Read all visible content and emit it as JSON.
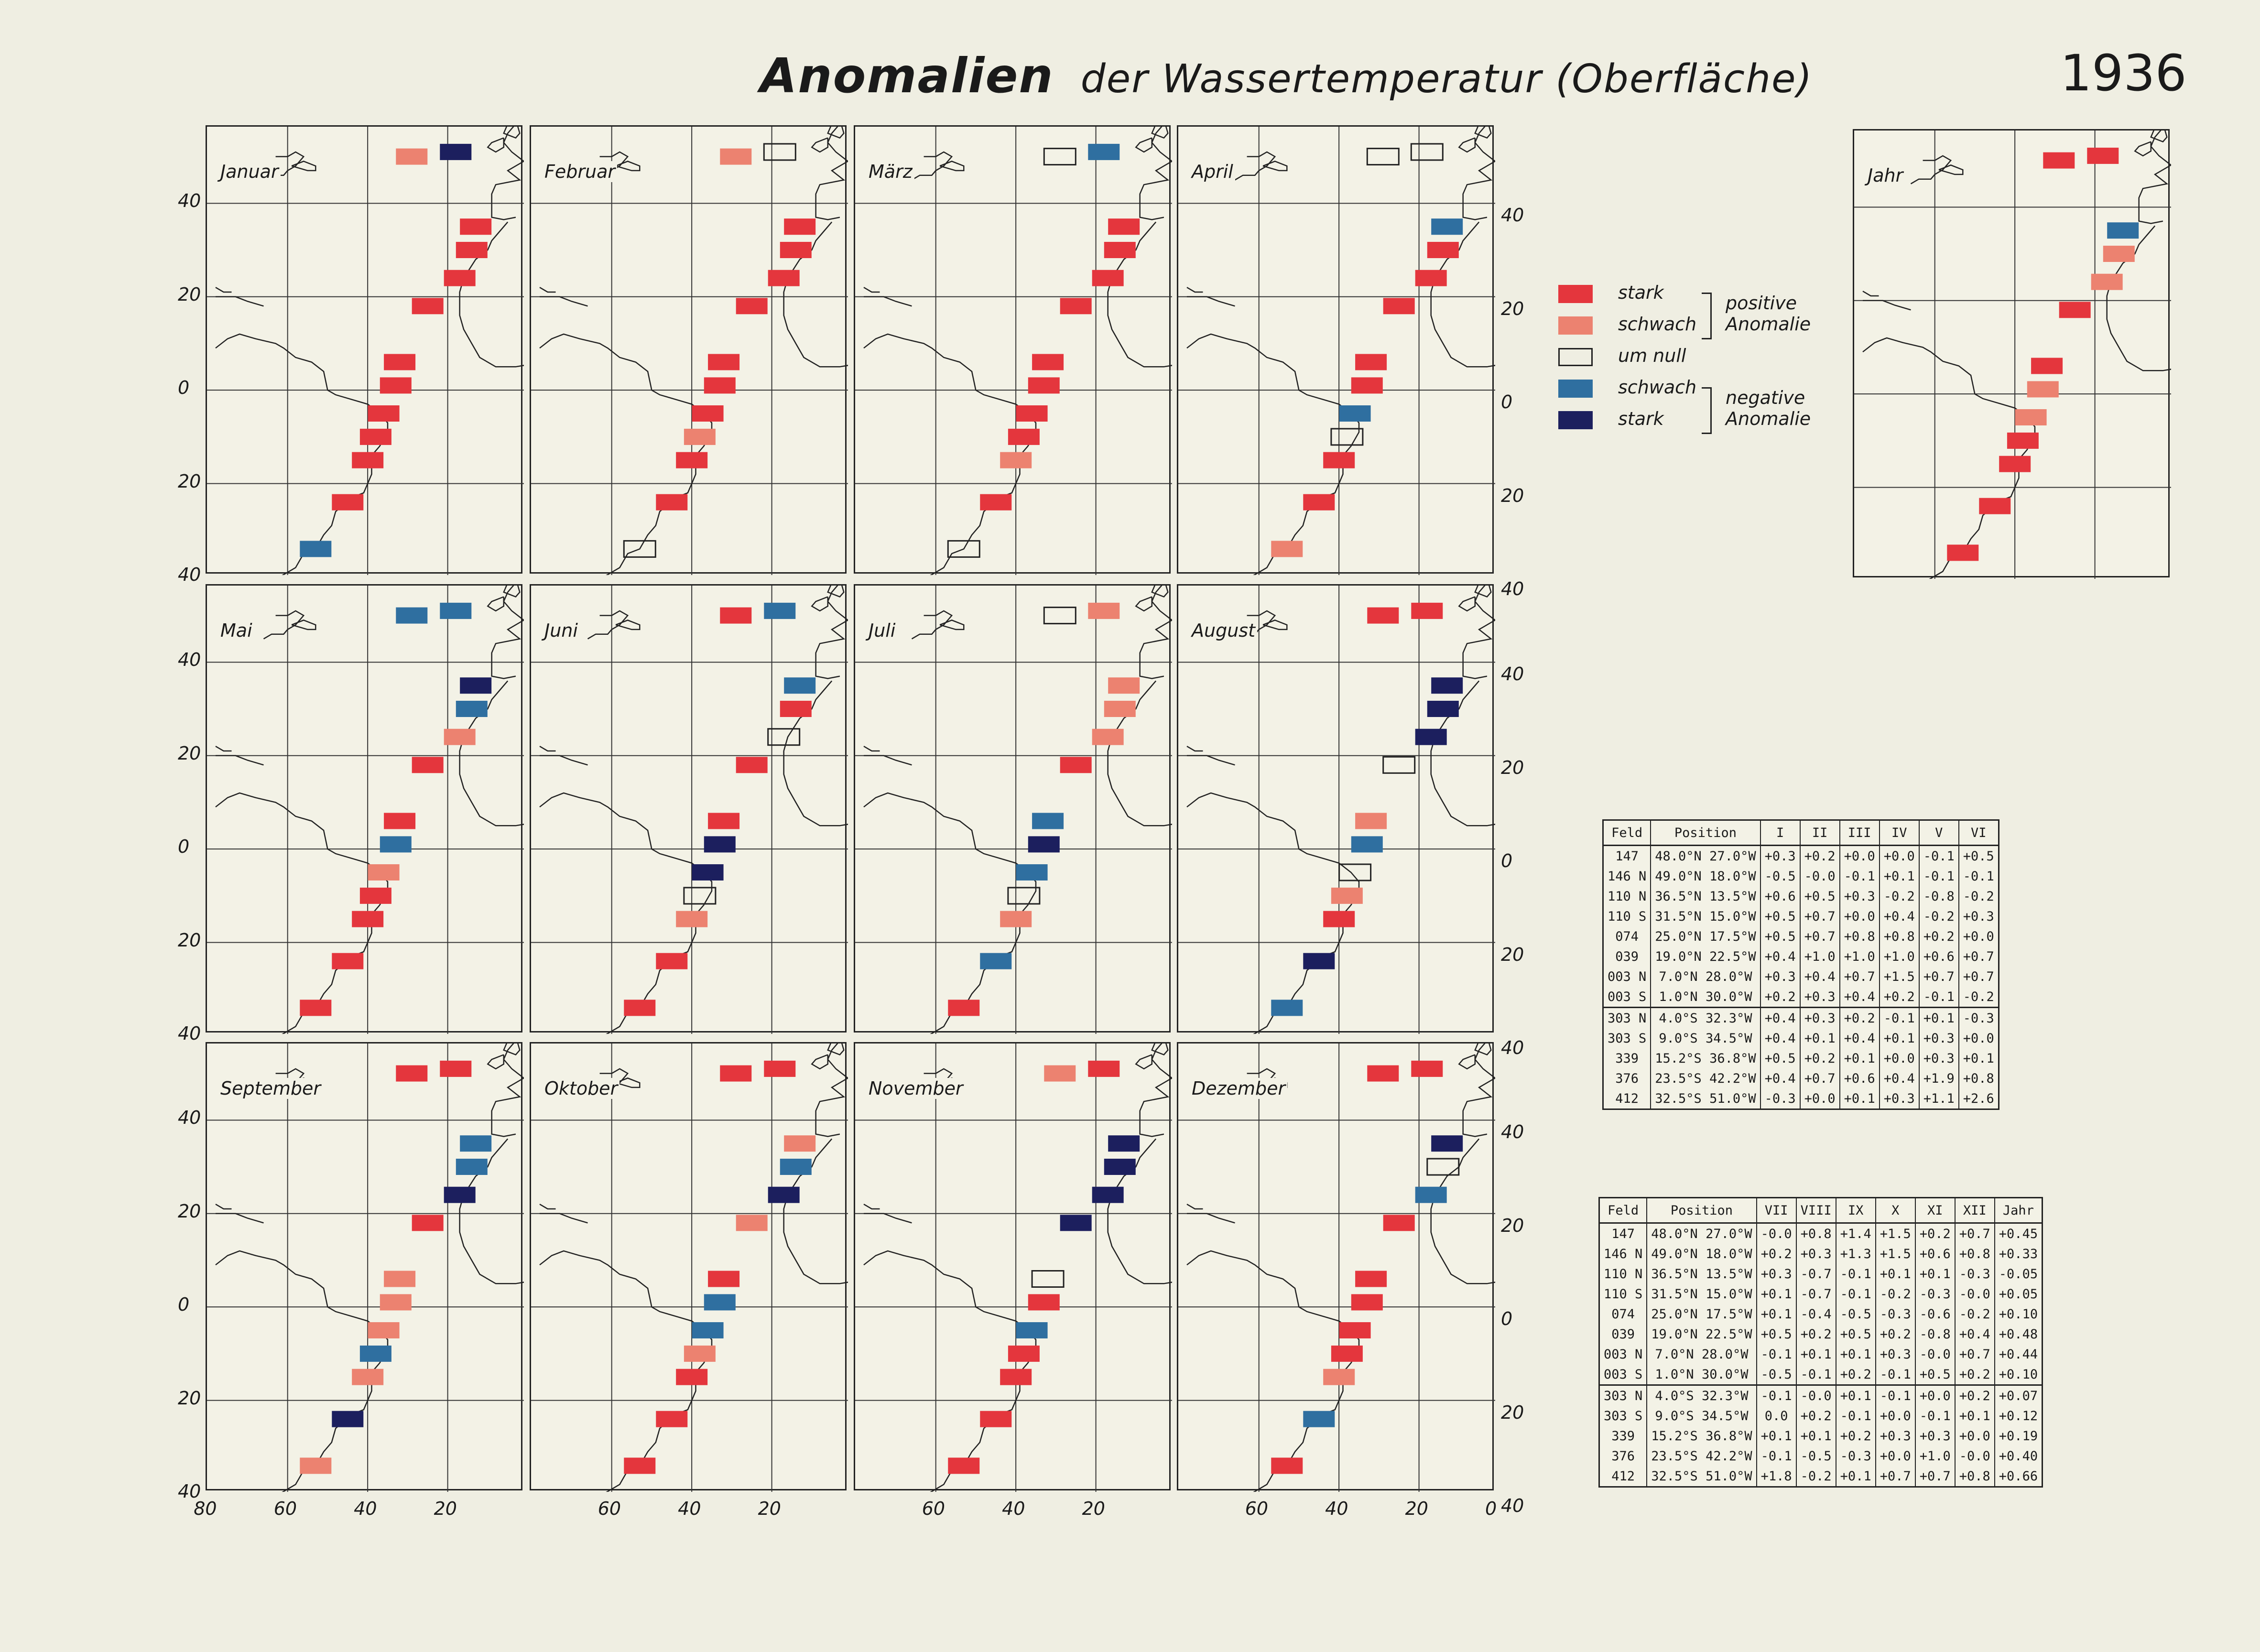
{
  "title": {
    "main": "Anomalien",
    "rest": "der Wassertemperatur (Oberfläche)",
    "year": "1936"
  },
  "colors": {
    "stark_pos": "#e4363d",
    "schwach_pos": "#ec8270",
    "null": "none",
    "schwach_neg": "#2f6fa0",
    "stark_neg": "#1c1f5e",
    "land": "#222222"
  },
  "axis": {
    "y_left": [
      "40",
      "20",
      "0",
      "20",
      "40"
    ],
    "y_right": [
      "40",
      "20",
      "0",
      "20",
      "40"
    ],
    "x": [
      "80",
      "60",
      "40",
      "20",
      "0"
    ]
  },
  "legend": {
    "items": [
      {
        "cls": "sp",
        "label": "stark"
      },
      {
        "cls": "wp",
        "label": "schwach"
      },
      {
        "cls": "n",
        "label": "um null"
      },
      {
        "cls": "wn",
        "label": "schwach"
      },
      {
        "cls": "sn",
        "label": "stark"
      }
    ],
    "pos_group": "positive\nAnomalie",
    "neg_group": "negative\nAnomalie"
  },
  "fields": [
    {
      "id": "147",
      "lat": 48.0,
      "lon": -27.0,
      "bar_lat": 50,
      "bar_lon": -29
    },
    {
      "id": "146 N",
      "lat": 49.0,
      "lon": -18.0,
      "bar_lat": 51,
      "bar_lon": -18
    },
    {
      "id": "110 N",
      "lat": 36.5,
      "lon": -13.5,
      "bar_lat": 35,
      "bar_lon": -13
    },
    {
      "id": "110 S",
      "lat": 31.5,
      "lon": -15.0,
      "bar_lat": 30,
      "bar_lon": -14
    },
    {
      "id": "074",
      "lat": 25.0,
      "lon": -17.5,
      "bar_lat": 24,
      "bar_lon": -17
    },
    {
      "id": "039",
      "lat": 19.0,
      "lon": -22.5,
      "bar_lat": 18,
      "bar_lon": -25
    },
    {
      "id": "003 N",
      "lat": 7.0,
      "lon": -28.0,
      "bar_lat": 6,
      "bar_lon": -32
    },
    {
      "id": "003 S",
      "lat": 1.0,
      "lon": -30.0,
      "bar_lat": 1,
      "bar_lon": -33
    },
    {
      "id": "303 N",
      "lat": -4.0,
      "lon": -32.3,
      "bar_lat": -5,
      "bar_lon": -36
    },
    {
      "id": "303 S",
      "lat": -9.0,
      "lon": -34.5,
      "bar_lat": -10,
      "bar_lon": -38
    },
    {
      "id": "339",
      "lat": -15.2,
      "lon": -36.8,
      "bar_lat": -15,
      "bar_lon": -40
    },
    {
      "id": "376",
      "lat": -23.5,
      "lon": -42.2,
      "bar_lat": -24,
      "bar_lon": -45
    },
    {
      "id": "412",
      "lat": -32.5,
      "lon": -51.0,
      "bar_lat": -34,
      "bar_lon": -53
    }
  ],
  "months": [
    {
      "name": "Januar",
      "cls": [
        "wp",
        "sn",
        "sp",
        "sp",
        "sp",
        "sp",
        "sp",
        "sp",
        "sp",
        "sp",
        "sp",
        "sp",
        "wn"
      ]
    },
    {
      "name": "Februar",
      "cls": [
        "wp",
        "n",
        "sp",
        "sp",
        "sp",
        "sp",
        "sp",
        "sp",
        "sp",
        "wp",
        "sp",
        "sp",
        "n"
      ]
    },
    {
      "name": "März",
      "cls": [
        "n",
        "wn",
        "sp",
        "sp",
        "sp",
        "sp",
        "sp",
        "sp",
        "sp",
        "sp",
        "wp",
        "sp",
        "n"
      ]
    },
    {
      "name": "April",
      "cls": [
        "n",
        "n",
        "wn",
        "sp",
        "sp",
        "sp",
        "sp",
        "sp",
        "wn",
        "n",
        "sp",
        "sp",
        "wp"
      ]
    },
    {
      "name": "Mai",
      "cls": [
        "wn",
        "wn",
        "sn",
        "wn",
        "wp",
        "sp",
        "sp",
        "wn",
        "wp",
        "sp",
        "sp",
        "sp",
        "sp"
      ]
    },
    {
      "name": "Juni",
      "cls": [
        "sp",
        "wn",
        "wn",
        "sp",
        "n",
        "sp",
        "sp",
        "sn",
        "sn",
        "n",
        "wp",
        "sp",
        "sp"
      ]
    },
    {
      "name": "Juli",
      "cls": [
        "n",
        "wp",
        "wp",
        "wp",
        "wp",
        "sp",
        "wn",
        "sn",
        "wn",
        "n",
        "wp",
        "wn",
        "sp"
      ]
    },
    {
      "name": "August",
      "cls": [
        "sp",
        "sp",
        "sn",
        "sn",
        "sn",
        "n",
        "wp",
        "wn",
        "n",
        "wp",
        "sp",
        "sn",
        "wn"
      ]
    },
    {
      "name": "September",
      "cls": [
        "sp",
        "sp",
        "wn",
        "wn",
        "sn",
        "sp",
        "wp",
        "wp",
        "wp",
        "wn",
        "wp",
        "sn",
        "wp"
      ]
    },
    {
      "name": "Oktober",
      "cls": [
        "sp",
        "sp",
        "wp",
        "wn",
        "sn",
        "wp",
        "sp",
        "wn",
        "wn",
        "wp",
        "sp",
        "sp",
        "sp"
      ]
    },
    {
      "name": "November",
      "cls": [
        "wp",
        "sp",
        "sn",
        "sn",
        "sn",
        "sn",
        "n",
        "sp",
        "wn",
        "sp",
        "sp",
        "sp",
        "sp"
      ]
    },
    {
      "name": "Dezember",
      "cls": [
        "sp",
        "sp",
        "sn",
        "n",
        "wn",
        "sp",
        "sp",
        "sp",
        "sp",
        "sp",
        "wp",
        "wn",
        "sp"
      ]
    },
    {
      "name": "Jahr",
      "cls": [
        "sp",
        "sp",
        "wn",
        "wp",
        "wp",
        "sp",
        "sp",
        "wp",
        "wp",
        "sp",
        "sp",
        "sp",
        "sp"
      ]
    }
  ],
  "table1": {
    "headers": [
      "Feld",
      "Position",
      "I",
      "II",
      "III",
      "IV",
      "V",
      "VI"
    ],
    "rows": [
      [
        "147",
        "48.0°N 27.0°W",
        "+0.3",
        "+0.2",
        "+0.0",
        "+0.0",
        "-0.1",
        "+0.5"
      ],
      [
        "146 N",
        "49.0°N 18.0°W",
        "-0.5",
        "-0.0",
        "-0.1",
        "+0.1",
        "-0.1",
        "-0.1"
      ],
      [
        "110 N",
        "36.5°N 13.5°W",
        "+0.6",
        "+0.5",
        "+0.3",
        "-0.2",
        "-0.8",
        "-0.2"
      ],
      [
        "110 S",
        "31.5°N 15.0°W",
        "+0.5",
        "+0.7",
        "+0.0",
        "+0.4",
        "-0.2",
        "+0.3"
      ],
      [
        "074",
        "25.0°N 17.5°W",
        "+0.5",
        "+0.7",
        "+0.8",
        "+0.8",
        "+0.2",
        "+0.0"
      ],
      [
        "039",
        "19.0°N 22.5°W",
        "+0.4",
        "+1.0",
        "+1.0",
        "+1.0",
        "+0.6",
        "+0.7"
      ],
      [
        "003 N",
        "7.0°N 28.0°W",
        "+0.3",
        "+0.4",
        "+0.7",
        "+1.5",
        "+0.7",
        "+0.7"
      ],
      [
        "003 S",
        "1.0°N 30.0°W",
        "+0.2",
        "+0.3",
        "+0.4",
        "+0.2",
        "-0.1",
        "-0.2"
      ],
      [
        "303 N",
        "4.0°S 32.3°W",
        "+0.4",
        "+0.3",
        "+0.2",
        "-0.1",
        "+0.1",
        "-0.3"
      ],
      [
        "303 S",
        "9.0°S 34.5°W",
        "+0.4",
        "+0.1",
        "+0.4",
        "+0.1",
        "+0.3",
        "+0.0"
      ],
      [
        "339",
        "15.2°S 36.8°W",
        "+0.5",
        "+0.2",
        "+0.1",
        "+0.0",
        "+0.3",
        "+0.1"
      ],
      [
        "376",
        "23.5°S 42.2°W",
        "+0.4",
        "+0.7",
        "+0.6",
        "+0.4",
        "+1.9",
        "+0.8"
      ],
      [
        "412",
        "32.5°S 51.0°W",
        "-0.3",
        "+0.0",
        "+0.1",
        "+0.3",
        "+1.1",
        "+2.6"
      ]
    ]
  },
  "table2": {
    "headers": [
      "Feld",
      "Position",
      "VII",
      "VIII",
      "IX",
      "X",
      "XI",
      "XII",
      "Jahr"
    ],
    "rows": [
      [
        "147",
        "48.0°N 27.0°W",
        "-0.0",
        "+0.8",
        "+1.4",
        "+1.5",
        "+0.2",
        "+0.7",
        "+0.45"
      ],
      [
        "146 N",
        "49.0°N 18.0°W",
        "+0.2",
        "+0.3",
        "+1.3",
        "+1.5",
        "+0.6",
        "+0.8",
        "+0.33"
      ],
      [
        "110 N",
        "36.5°N 13.5°W",
        "+0.3",
        "-0.7",
        "-0.1",
        "+0.1",
        "+0.1",
        "-0.3",
        "-0.05"
      ],
      [
        "110 S",
        "31.5°N 15.0°W",
        "+0.1",
        "-0.7",
        "-0.1",
        "-0.2",
        "-0.3",
        "-0.0",
        "+0.05"
      ],
      [
        "074",
        "25.0°N 17.5°W",
        "+0.1",
        "-0.4",
        "-0.5",
        "-0.3",
        "-0.6",
        "-0.2",
        "+0.10"
      ],
      [
        "039",
        "19.0°N 22.5°W",
        "+0.5",
        "+0.2",
        "+0.5",
        "+0.2",
        "-0.8",
        "+0.4",
        "+0.48"
      ],
      [
        "003 N",
        "7.0°N 28.0°W",
        "-0.1",
        "+0.1",
        "+0.1",
        "+0.3",
        "-0.0",
        "+0.7",
        "+0.44"
      ],
      [
        "003 S",
        "1.0°N 30.0°W",
        "-0.5",
        "-0.1",
        "+0.2",
        "-0.1",
        "+0.5",
        "+0.2",
        "+0.10"
      ],
      [
        "303 N",
        "4.0°S 32.3°W",
        "-0.1",
        "-0.0",
        "+0.1",
        "-0.1",
        "+0.0",
        "+0.2",
        "+0.07"
      ],
      [
        "303 S",
        "9.0°S 34.5°W",
        "0.0",
        "+0.2",
        "-0.1",
        "+0.0",
        "-0.1",
        "+0.1",
        "+0.12"
      ],
      [
        "339",
        "15.2°S 36.8°W",
        "+0.1",
        "+0.1",
        "+0.2",
        "+0.3",
        "+0.3",
        "+0.0",
        "+0.19"
      ],
      [
        "376",
        "23.5°S 42.2°W",
        "-0.1",
        "-0.5",
        "-0.3",
        "+0.0",
        "+1.0",
        "-0.0",
        "+0.40"
      ],
      [
        "412",
        "32.5°S 51.0°W",
        "+1.8",
        "-0.2",
        "+0.1",
        "+0.7",
        "+0.7",
        "+0.8",
        "+0.66"
      ]
    ]
  }
}
